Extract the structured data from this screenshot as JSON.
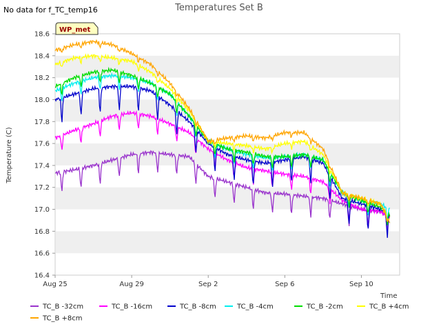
{
  "no_data_text": "No data for f_TC_temp16",
  "chart_data": {
    "type": "line",
    "title": "Temperatures Set B",
    "xlabel": "Time",
    "ylabel": "Temperature (C)",
    "ylim": [
      16.4,
      18.6
    ],
    "xlim": [
      "2020-08-25",
      "2020-09-12"
    ],
    "x_ticks": [
      "Aug 25",
      "Aug 29",
      "Sep 2",
      "Sep 6",
      "Sep 10"
    ],
    "y_ticks": [
      "16.4",
      "16.6",
      "16.8",
      "17.0",
      "17.2",
      "17.4",
      "17.6",
      "17.8",
      "18.0",
      "18.2",
      "18.4",
      "18.6"
    ],
    "grid": "horizontal bands",
    "legend_position": "bottom",
    "site_label": "WP_met",
    "x": [
      "2020-08-25",
      "2020-08-26",
      "2020-08-27",
      "2020-08-28",
      "2020-08-29",
      "2020-08-30",
      "2020-08-31",
      "2020-09-01",
      "2020-09-02",
      "2020-09-03",
      "2020-09-04",
      "2020-09-05",
      "2020-09-06",
      "2020-09-07",
      "2020-09-08",
      "2020-09-09",
      "2020-09-10",
      "2020-09-11",
      "2020-09-11T12:00"
    ],
    "series": [
      {
        "name": "TC_B -32cm",
        "color": "#9932CC",
        "values": [
          17.33,
          17.36,
          17.4,
          17.45,
          17.5,
          17.52,
          17.5,
          17.48,
          17.3,
          17.25,
          17.2,
          17.15,
          17.14,
          17.12,
          17.1,
          17.05,
          17.0,
          16.98,
          16.95
        ]
      },
      {
        "name": "TC_B -16cm",
        "color": "#FF00FF",
        "values": [
          17.65,
          17.72,
          17.78,
          17.85,
          17.88,
          17.85,
          17.78,
          17.7,
          17.55,
          17.45,
          17.38,
          17.35,
          17.32,
          17.3,
          17.25,
          17.08,
          17.0,
          16.98,
          16.92
        ]
      },
      {
        "name": "TC_B -8cm",
        "color": "#0000CC",
        "values": [
          18.0,
          18.05,
          18.1,
          18.12,
          18.12,
          18.08,
          17.95,
          17.8,
          17.6,
          17.5,
          17.45,
          17.42,
          17.45,
          17.48,
          17.42,
          17.1,
          17.05,
          17.0,
          16.95
        ]
      },
      {
        "name": "TC_B -4cm",
        "color": "#00EEEE",
        "values": [
          18.08,
          18.15,
          18.2,
          18.22,
          18.2,
          18.15,
          18.05,
          17.85,
          17.62,
          17.55,
          17.5,
          17.47,
          17.48,
          17.5,
          17.45,
          17.15,
          17.08,
          17.05,
          17.0
        ]
      },
      {
        "name": "TC_B -2cm",
        "color": "#00DD00",
        "values": [
          18.12,
          18.2,
          18.25,
          18.27,
          18.22,
          18.15,
          18.05,
          17.85,
          17.62,
          17.55,
          17.52,
          17.48,
          17.48,
          17.5,
          17.45,
          17.15,
          17.08,
          17.02,
          16.95
        ]
      },
      {
        "name": "TC_B +4cm",
        "color": "#FFFF00",
        "values": [
          18.32,
          18.38,
          18.4,
          18.38,
          18.35,
          18.25,
          18.1,
          17.9,
          17.62,
          17.6,
          17.58,
          17.55,
          17.6,
          17.62,
          17.5,
          17.15,
          17.1,
          17.05,
          16.9
        ]
      },
      {
        "name": "TC_B +8cm",
        "color": "#FFA500",
        "values": [
          18.45,
          18.5,
          18.53,
          18.5,
          18.42,
          18.32,
          18.15,
          17.92,
          17.62,
          17.65,
          17.67,
          17.65,
          17.7,
          17.7,
          17.55,
          17.15,
          17.1,
          17.05,
          16.88
        ]
      }
    ]
  }
}
